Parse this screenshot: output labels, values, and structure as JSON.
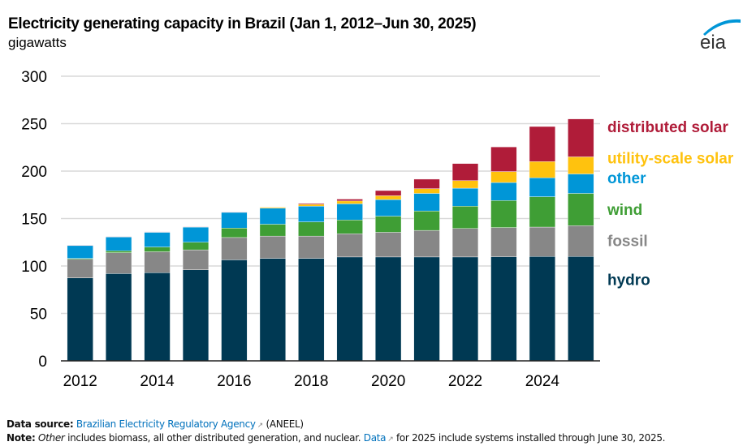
{
  "header": {
    "title": "Electricity generating capacity in Brazil (Jan 1, 2012–Jun 30, 2025)",
    "subtitle": "gigawatts",
    "logo_text": "eia"
  },
  "colors": {
    "hydro": "#003953",
    "fossil": "#878787",
    "wind": "#3F9E35",
    "other": "#0096D7",
    "utility_solar": "#FFC20E",
    "distributed_solar": "#B01C39"
  },
  "chart_data": {
    "type": "bar",
    "stacked": true,
    "title": "Electricity generating capacity in Brazil (Jan 1, 2012–Jun 30, 2025)",
    "ylabel": "gigawatts",
    "xlabel": "",
    "ylim": [
      0,
      300
    ],
    "yticks": [
      0,
      50,
      100,
      150,
      200,
      250,
      300
    ],
    "grid": true,
    "legend_placement": "right (inline labels)",
    "categories": [
      "2012",
      "2013",
      "2014",
      "2015",
      "2016",
      "2017",
      "2018",
      "2019",
      "2020",
      "2021",
      "2022",
      "2023",
      "2024",
      "2025"
    ],
    "xtick_labels": [
      "2012",
      "",
      "2014",
      "",
      "2016",
      "",
      "2018",
      "",
      "2020",
      "",
      "2022",
      "",
      "2024",
      ""
    ],
    "series": [
      {
        "name": "hydro",
        "color_key": "hydro",
        "values": [
          87.5,
          92,
          93,
          96,
          106.5,
          108,
          108,
          109.5,
          109.5,
          109.5,
          109.5,
          109.8,
          110,
          110
        ]
      },
      {
        "name": "fossil",
        "color_key": "fossil",
        "values": [
          19.5,
          22,
          22,
          21,
          23.5,
          23.5,
          23.5,
          24.5,
          26,
          28,
          30,
          30.7,
          31,
          32.5
        ]
      },
      {
        "name": "wind",
        "color_key": "wind",
        "values": [
          1,
          2,
          5,
          8,
          10,
          12.5,
          15,
          14.5,
          17,
          20.5,
          23.5,
          28.5,
          32,
          34
        ]
      },
      {
        "name": "other",
        "color_key": "other",
        "values": [
          13.5,
          14.5,
          15.5,
          16,
          16.5,
          17,
          16.5,
          17,
          17.5,
          18.5,
          19,
          19,
          20,
          20.5
        ]
      },
      {
        "name": "utility-scale solar",
        "color_key": "utility_solar",
        "values": [
          0.1,
          0.1,
          0.1,
          0.1,
          0.1,
          1,
          2,
          3,
          4,
          5,
          8,
          11.5,
          17,
          18
        ]
      },
      {
        "name": "distributed  solar",
        "color_key": "distributed_solar",
        "values": [
          0.3,
          0.4,
          0.4,
          0.4,
          0.4,
          0.3,
          1,
          2,
          5.5,
          10,
          18,
          26,
          37,
          40
        ]
      }
    ],
    "legend": [
      {
        "label": "distributed  solar",
        "color_key": "distributed_solar",
        "anchor_value": 247
      },
      {
        "label": "utility-scale solar",
        "color_key": "utility_solar",
        "anchor_value": 214
      },
      {
        "label": "other",
        "color_key": "other",
        "anchor_value": 193
      },
      {
        "label": "wind",
        "color_key": "wind",
        "anchor_value": 160
      },
      {
        "label": "fossil",
        "color_key": "fossil",
        "anchor_value": 127
      },
      {
        "label": "hydro",
        "color_key": "hydro",
        "anchor_value": 86
      }
    ]
  },
  "footer": {
    "source_label": "Data source:",
    "source_link": "Brazilian Electricity Regulatory Agency",
    "source_suffix": "(ANEEL)",
    "note_label": "Note:",
    "note_italic": "Other",
    "note_text1": "includes biomass, all other distributed generation, and nuclear.",
    "note_link": "Data",
    "note_text2": "for 2025 include systems installed through June 30, 2025.",
    "ext_icon": "↗"
  }
}
